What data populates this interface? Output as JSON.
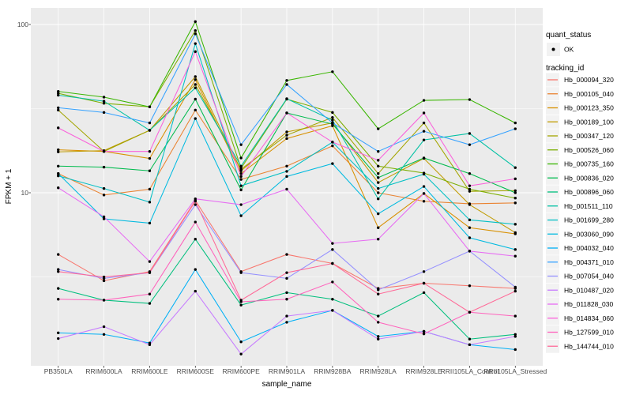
{
  "figure": {
    "y_axis_title": "FPKM + 1",
    "x_axis_title": "sample_name",
    "y_tick_labels": [
      "100",
      "10"
    ]
  },
  "legend": {
    "quant_status_title": "quant_status",
    "quant_status_items": [
      {
        "label": "OK",
        "marker": "black-point",
        "marker_color": "#000000"
      }
    ],
    "tracking_id_title": "tracking_id"
  },
  "chart_data": {
    "type": "line",
    "x_type": "categorical",
    "title": "",
    "xlabel": "sample_name",
    "ylabel": "FPKM + 1",
    "y_scale": "log10",
    "ylim": [
      0.94,
      125
    ],
    "y_major_ticks": [
      10,
      100
    ],
    "y_minor_gridlines": [
      3.162,
      31.62
    ],
    "grid": true,
    "legend_position": "right",
    "panel_background": "#EBEBEB",
    "gridline_color": "#FFFFFF",
    "point_color": "#000000",
    "point_shape": "circle",
    "legend_key_background": "#F2F2F2",
    "categories": [
      "PB350LA",
      "RRIM600LA",
      "RRIM600LE",
      "RRIM600SE",
      "RRIM600PE",
      "RRIM901LA",
      "RRIM928BA",
      "RRIM928LA",
      "RRIM928LE",
      "RRII105LA_Control",
      "RRII105LA_Stressed"
    ],
    "series": [
      {
        "name": "Hb_000094_320",
        "color": "#F8766D",
        "values": [
          4.3,
          3.0,
          3.4,
          9.0,
          3.4,
          4.3,
          3.8,
          2.7,
          2.9,
          2.8,
          2.7
        ]
      },
      {
        "name": "Hb_000105_040",
        "color": "#EA8331",
        "values": [
          13.0,
          9.7,
          10.5,
          31,
          12.0,
          14.4,
          19.0,
          10.0,
          8.9,
          8.6,
          8.7
        ]
      },
      {
        "name": "Hb_000123_350",
        "color": "#D89000",
        "values": [
          18.0,
          17.6,
          16.0,
          47,
          13.0,
          21.0,
          25.0,
          6.2,
          9.9,
          6.2,
          5.7
        ]
      },
      {
        "name": "Hb_000189_100",
        "color": "#C09B00",
        "values": [
          17.5,
          17.8,
          23.5,
          49,
          13.5,
          23.0,
          26.0,
          11.5,
          16.0,
          8.5,
          5.8
        ]
      },
      {
        "name": "Hb_000347_120",
        "color": "#A3A500",
        "values": [
          31.0,
          17.6,
          23.5,
          44,
          13.8,
          22.0,
          28.0,
          13.0,
          26.0,
          10.2,
          10.3
        ]
      },
      {
        "name": "Hb_000526_060",
        "color": "#7CAE00",
        "values": [
          39.0,
          34.0,
          32.4,
          92,
          14.0,
          36.0,
          30.0,
          14.4,
          13.1,
          10.5,
          9.3
        ]
      },
      {
        "name": "Hb_000735_160",
        "color": "#39B600",
        "values": [
          40.0,
          37.0,
          32.4,
          104,
          16.1,
          46.5,
          52.4,
          24.0,
          35.4,
          35.8,
          26.0
        ]
      },
      {
        "name": "Hb_000836_020",
        "color": "#00BB4E",
        "values": [
          14.4,
          14.2,
          13.5,
          36,
          10.4,
          29.8,
          25.6,
          12.3,
          16.1,
          13.0,
          10.0
        ]
      },
      {
        "name": "Hb_000896_060",
        "color": "#00BF7D",
        "values": [
          2.7,
          2.3,
          2.2,
          5.3,
          2.15,
          2.55,
          2.33,
          1.85,
          2.55,
          1.35,
          1.44
        ]
      },
      {
        "name": "Hb_001511_110",
        "color": "#00C1A3",
        "values": [
          38.0,
          35.0,
          23.5,
          42,
          14.4,
          36.2,
          27.0,
          9.2,
          20.6,
          22.5,
          14.1
        ]
      },
      {
        "name": "Hb_001699_280",
        "color": "#00BFC4",
        "values": [
          12.6,
          10.6,
          8.8,
          77,
          11.0,
          13.4,
          20.0,
          10.6,
          12.9,
          6.9,
          6.5
        ]
      },
      {
        "name": "Hb_003060_090",
        "color": "#00BAE0",
        "values": [
          13.0,
          7.0,
          6.6,
          27.6,
          7.3,
          12.5,
          14.9,
          7.5,
          10.9,
          5.4,
          4.6
        ]
      },
      {
        "name": "Hb_004032_040",
        "color": "#00B0F6",
        "values": [
          1.47,
          1.44,
          1.28,
          3.5,
          1.3,
          1.7,
          2.0,
          1.4,
          1.5,
          1.25,
          1.17
        ]
      },
      {
        "name": "Hb_004371_010",
        "color": "#35A2FF",
        "values": [
          32.0,
          30.0,
          26.0,
          88,
          19.3,
          44.0,
          26.0,
          17.6,
          23.2,
          19.3,
          24.0
        ]
      },
      {
        "name": "Hb_007054_040",
        "color": "#9590FF",
        "values": [
          3.5,
          3.1,
          3.35,
          8.5,
          3.35,
          3.1,
          4.6,
          2.65,
          3.4,
          4.5,
          2.75
        ]
      },
      {
        "name": "Hb_010487_020",
        "color": "#C77CFF",
        "values": [
          1.36,
          1.6,
          1.25,
          2.6,
          1.1,
          1.85,
          2.0,
          1.35,
          1.5,
          1.25,
          1.4
        ]
      },
      {
        "name": "Hb_011828_030",
        "color": "#E76BF3",
        "values": [
          10.7,
          7.2,
          3.9,
          9.2,
          8.5,
          10.5,
          5.0,
          5.3,
          9.9,
          4.5,
          4.2
        ]
      },
      {
        "name": "Hb_014834_060",
        "color": "#FA62DB",
        "values": [
          24.3,
          17.6,
          17.6,
          69,
          12.5,
          29.8,
          20.0,
          15.6,
          29.8,
          11.0,
          12.1
        ]
      },
      {
        "name": "Hb_127599_010",
        "color": "#FF62BC",
        "values": [
          2.33,
          2.3,
          2.5,
          6.7,
          2.25,
          2.33,
          2.95,
          1.7,
          1.45,
          1.95,
          1.85
        ]
      },
      {
        "name": "Hb_144744_010",
        "color": "#FF6A98",
        "values": [
          3.4,
          3.16,
          3.35,
          8.9,
          2.3,
          3.35,
          3.8,
          2.5,
          2.9,
          1.95,
          2.6
        ]
      }
    ]
  }
}
